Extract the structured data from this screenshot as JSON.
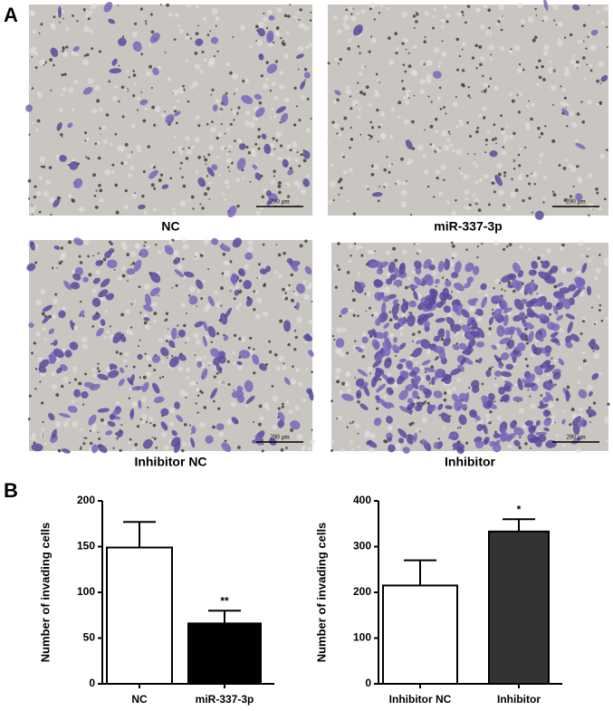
{
  "panels": [
    "A",
    "B"
  ],
  "images": [
    {
      "label": "NC",
      "scale_bar": "200 μm"
    },
    {
      "label": "miR-337-3p",
      "scale_bar": "200 μm"
    },
    {
      "label": "Inhibitor  NC",
      "scale_bar": "200 μm"
    },
    {
      "label": "Inhibitor",
      "scale_bar": "200 μm"
    }
  ],
  "chart_data": [
    {
      "type": "bar",
      "ylabel": "Number of invading cells",
      "categories": [
        "NC",
        "miR-337-3p"
      ],
      "values": [
        149,
        66
      ],
      "errors": [
        28,
        14
      ],
      "colors": [
        "#ffffff",
        "#000000"
      ],
      "significance": [
        null,
        "**"
      ],
      "ylim": [
        0,
        200
      ],
      "yticks": [
        0,
        50,
        100,
        150,
        200
      ]
    },
    {
      "type": "bar",
      "ylabel": "Number of invading cells",
      "categories": [
        "Inhibitor  NC",
        "Inhibitor"
      ],
      "values": [
        215,
        333
      ],
      "errors": [
        55,
        27
      ],
      "colors": [
        "#ffffff",
        "#333333"
      ],
      "significance": [
        null,
        "*"
      ],
      "ylim": [
        0,
        400
      ],
      "yticks": [
        0,
        100,
        200,
        300,
        400
      ]
    }
  ]
}
